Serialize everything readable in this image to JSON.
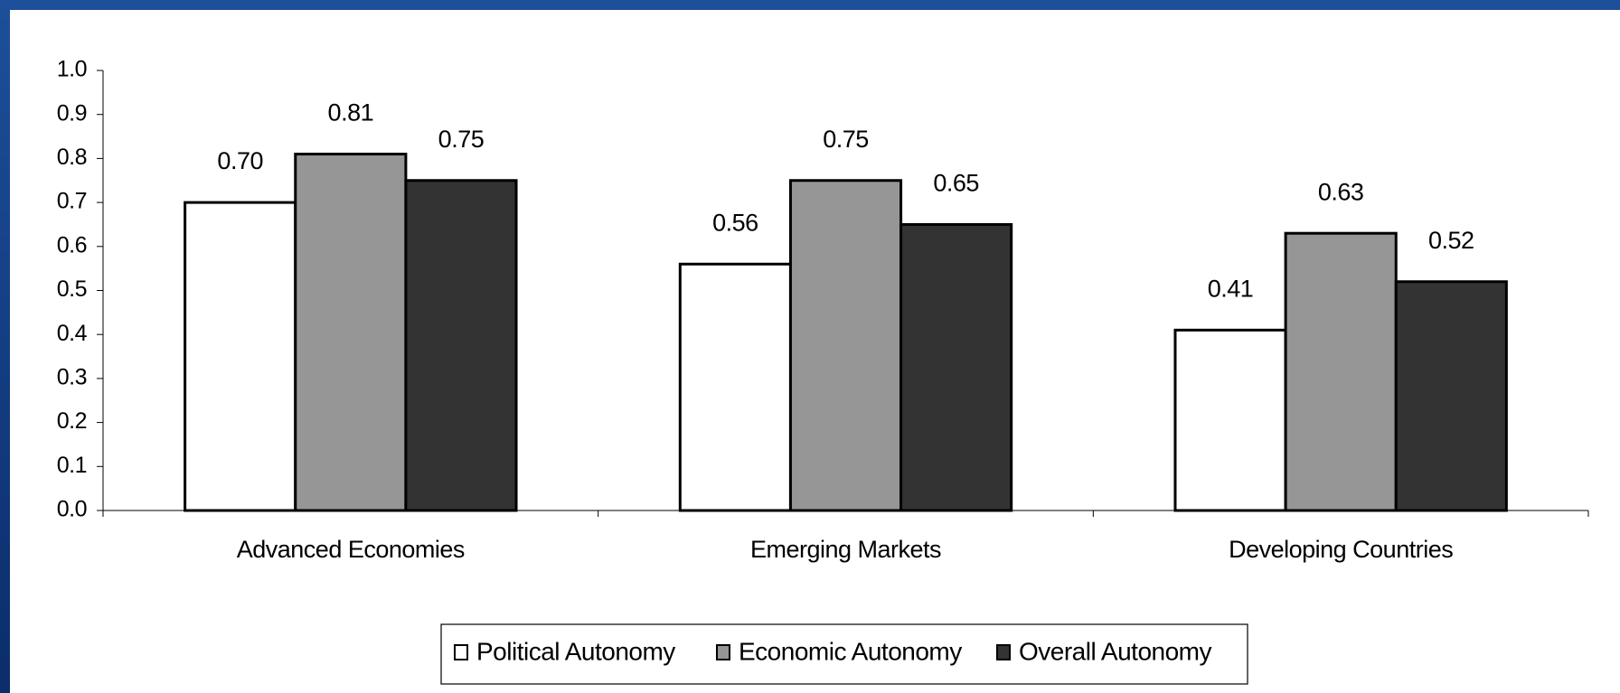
{
  "chart_data": {
    "type": "bar",
    "categories": [
      "Advanced Economies",
      "Emerging Markets",
      "Developing Countries"
    ],
    "series": [
      {
        "name": "Political Autonomy",
        "color": "#ffffff",
        "values": [
          0.7,
          0.56,
          0.41
        ],
        "value_labels": [
          "0.70",
          "0.56",
          "0.41"
        ]
      },
      {
        "name": "Economic Autonomy",
        "color": "#969696",
        "values": [
          0.81,
          0.75,
          0.63
        ],
        "value_labels": [
          "0.81",
          "0.75",
          "0.63"
        ]
      },
      {
        "name": "Overall Autonomy",
        "color": "#333333",
        "values": [
          0.75,
          0.65,
          0.52
        ],
        "value_labels": [
          "0.75",
          "0.65",
          "0.52"
        ]
      }
    ],
    "ylim": [
      0,
      1
    ],
    "yticks": [
      {
        "value": 0,
        "label": "0.0"
      },
      0.1,
      0.2,
      0.3,
      0.4,
      0.5,
      0.6,
      0.7,
      0.8,
      0.9,
      {
        "value": 1,
        "label": "1.0"
      }
    ],
    "grid": false,
    "legend": "bottom"
  }
}
